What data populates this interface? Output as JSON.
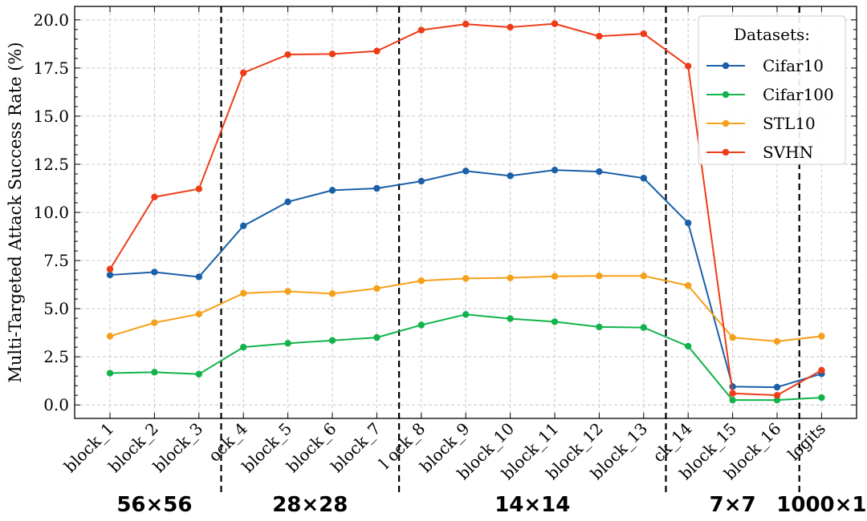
{
  "chart_data": {
    "type": "line",
    "title": "",
    "xlabel": "",
    "ylabel": "Multi-Targeted Attack Success Rate (%)",
    "ylim": [
      -0.7,
      20.7
    ],
    "yticks": [
      "0.0",
      "2.5",
      "5.0",
      "7.5",
      "10.0",
      "12.5",
      "15.0",
      "17.5",
      "20.0"
    ],
    "grid": true,
    "categories": [
      "block_1",
      "block_2",
      "block_3",
      "block_4",
      "block_5",
      "block_6",
      "block_7",
      "block_8",
      "block_9",
      "block_10",
      "block_11",
      "block_12",
      "block_13",
      "block_14",
      "block_15",
      "block_16",
      "logits"
    ],
    "x_tick_labels_visible": [
      "block_1",
      "block_2",
      "block_3",
      "ock_4",
      "block_5",
      "block_6",
      "block_7",
      "l ock_8",
      "block_9",
      "block_10",
      "block_11",
      "block_12",
      "block_13",
      "ck_14",
      "block_15",
      "block_16",
      "logits"
    ],
    "legend_title": "Datasets:",
    "legend_position": "top-right",
    "series": [
      {
        "name": "Cifar10",
        "color": "#1a5fa8",
        "values": [
          6.75,
          6.9,
          6.65,
          9.3,
          10.55,
          11.15,
          11.25,
          11.62,
          12.15,
          11.9,
          12.2,
          12.12,
          11.78,
          9.45,
          0.95,
          0.92,
          1.62
        ]
      },
      {
        "name": "Cifar100",
        "color": "#13b34b",
        "values": [
          1.65,
          1.7,
          1.6,
          3.0,
          3.2,
          3.35,
          3.5,
          4.15,
          4.7,
          4.48,
          4.32,
          4.05,
          4.02,
          3.05,
          0.25,
          0.25,
          0.38
        ]
      },
      {
        "name": "STL10",
        "color": "#f5a01a",
        "values": [
          3.57,
          4.27,
          4.72,
          5.8,
          5.9,
          5.78,
          6.05,
          6.45,
          6.57,
          6.6,
          6.68,
          6.7,
          6.7,
          6.2,
          3.5,
          3.3,
          3.57
        ]
      },
      {
        "name": "SVHN",
        "color": "#ee3c18",
        "values": [
          7.05,
          10.8,
          11.22,
          17.25,
          18.2,
          18.23,
          18.38,
          19.47,
          19.78,
          19.62,
          19.8,
          19.15,
          19.28,
          17.6,
          0.6,
          0.5,
          1.8
        ]
      }
    ],
    "separators_after_index": [
      2,
      6,
      12,
      15
    ],
    "groups": [
      {
        "label": "56×56",
        "start": 0,
        "end": 2
      },
      {
        "label": "28×28",
        "start": 3,
        "end": 6
      },
      {
        "label": "14×14",
        "start": 7,
        "end": 12
      },
      {
        "label": "7×7",
        "start": 13,
        "end": 15
      },
      {
        "label": "1000×1",
        "start": 16,
        "end": 16
      }
    ]
  }
}
